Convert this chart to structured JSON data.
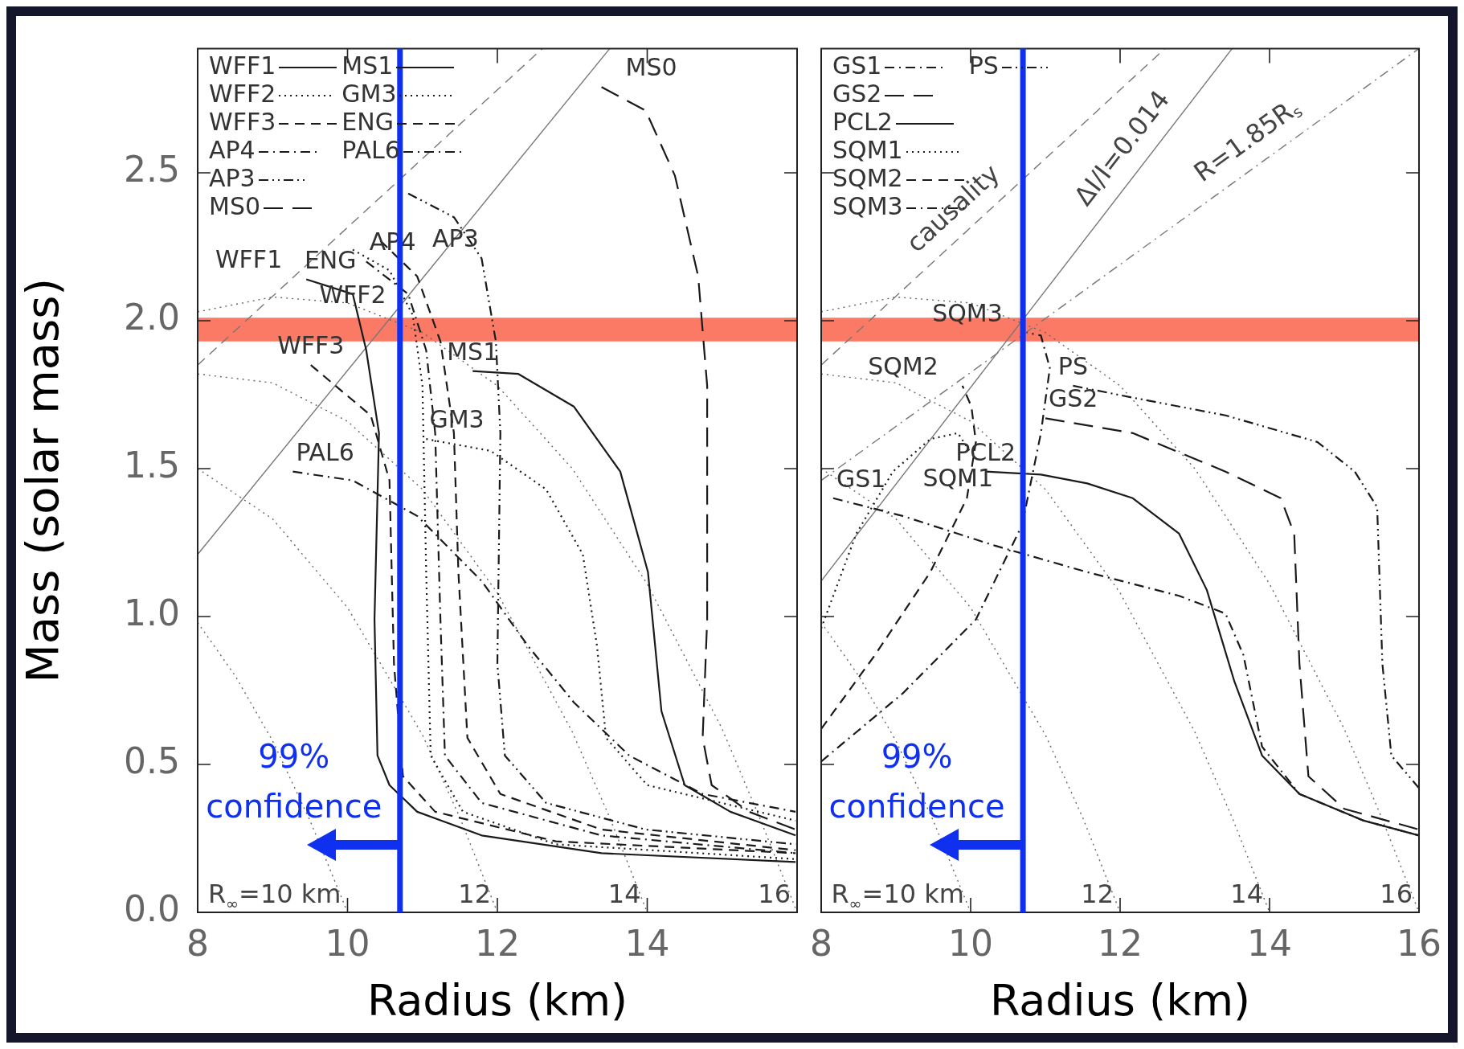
{
  "chart_data": [
    {
      "type": "line",
      "xlabel": "Radius (km)",
      "ylabel": "Mass (solar mass)",
      "xlim": [
        8,
        16
      ],
      "ylim": [
        0,
        2.92
      ],
      "xticks": [
        8,
        10,
        12,
        14,
        {
          "value": 16,
          "label": null
        }
      ],
      "yticks": [
        {
          "value": 0,
          "label": "0.0"
        },
        0.5,
        {
          "value": 1,
          "label": "1.0"
        },
        1.5,
        {
          "value": 2,
          "label": "2.0"
        },
        2.5
      ],
      "legend": "top left",
      "series": [
        {
          "name": "WFF1",
          "color": "#1a1a1a",
          "line_style": "solid",
          "x": [
            9.45,
            10.07,
            10.25,
            10.42,
            10.36,
            10.4,
            10.56,
            10.93,
            11.79,
            13.39,
            15.98
          ],
          "values": [
            2.14,
            2.09,
            1.9,
            1.62,
            0.99,
            0.53,
            0.43,
            0.34,
            0.26,
            0.2,
            0.17
          ]
        },
        {
          "name": "WFF2",
          "color": "#1a1a1a",
          "line_style": "dotted",
          "x": [
            10.07,
            10.56,
            10.87,
            11.0,
            11.05,
            11.11,
            11.54,
            12.78,
            15.98
          ],
          "values": [
            2.24,
            2.17,
            2.02,
            1.78,
            1.15,
            0.53,
            0.34,
            0.23,
            0.18
          ]
        },
        {
          "name": "WFF3",
          "color": "#1a1a1a",
          "line_style": "dashed",
          "x": [
            9.51,
            10.31,
            10.56,
            10.62,
            10.74,
            11.17,
            12.78,
            15.98
          ],
          "values": [
            1.85,
            1.68,
            1.46,
            0.84,
            0.46,
            0.34,
            0.24,
            0.2
          ]
        },
        {
          "name": "AP4",
          "color": "#1a1a1a",
          "line_style": "dashdot",
          "x": [
            10.25,
            10.81,
            11.05,
            11.17,
            11.24,
            11.3,
            11.79,
            13.39,
            15.98
          ],
          "values": [
            2.2,
            2.09,
            1.9,
            1.62,
            0.99,
            0.53,
            0.37,
            0.26,
            0.2
          ]
        },
        {
          "name": "AP3",
          "color": "#1a1a1a",
          "line_style": "dashdotdot",
          "x": [
            10.81,
            11.42,
            11.79,
            11.98,
            12.04,
            12.0,
            12.1,
            12.65,
            13.98,
            15.98
          ],
          "values": [
            2.43,
            2.35,
            2.21,
            1.93,
            1.62,
            0.84,
            0.53,
            0.37,
            0.28,
            0.23
          ]
        },
        {
          "name": "MS0",
          "color": "#1a1a1a",
          "line_style": "longdash",
          "x": [
            13.39,
            13.98,
            14.37,
            14.68,
            14.8,
            14.8,
            14.74,
            14.86,
            15.36,
            15.98
          ],
          "values": [
            2.79,
            2.71,
            2.49,
            2.15,
            1.78,
            0.99,
            0.59,
            0.43,
            0.34,
            0.28
          ]
        },
        {
          "name": "MS1",
          "color": "#1a1a1a",
          "line_style": "solid",
          "x": [
            11.67,
            12.28,
            13.02,
            13.64,
            14.01,
            14.19,
            14.5,
            15.11,
            15.98
          ],
          "values": [
            1.83,
            1.82,
            1.71,
            1.49,
            1.15,
            0.68,
            0.43,
            0.34,
            0.26
          ]
        },
        {
          "name": "GM3",
          "color": "#1a1a1a",
          "line_style": "dotted",
          "x": [
            11.05,
            11.91,
            12.65,
            13.14,
            13.33,
            13.45,
            14.0,
            15.98
          ],
          "values": [
            1.6,
            1.56,
            1.43,
            1.21,
            0.9,
            0.59,
            0.43,
            0.31
          ]
        },
        {
          "name": "ENG",
          "color": "#1a1a1a",
          "line_style": "dashed",
          "x": [
            10.44,
            10.93,
            11.24,
            11.42,
            11.48,
            11.6,
            12.04,
            13.39,
            15.98
          ],
          "values": [
            2.27,
            2.15,
            1.93,
            1.62,
            1.15,
            0.59,
            0.4,
            0.28,
            0.21
          ]
        },
        {
          "name": "PAL6",
          "color": "#1a1a1a",
          "line_style": "dashdot",
          "x": [
            9.27,
            10.07,
            10.93,
            11.79,
            12.41,
            13.02,
            13.76,
            14.74,
            15.98
          ],
          "values": [
            1.49,
            1.46,
            1.34,
            1.12,
            0.9,
            0.71,
            0.53,
            0.4,
            0.34
          ]
        },
        {
          "color": "#666666",
          "line_style": "dotted",
          "x": [
            8,
            8.5,
            9,
            9.5,
            10
          ],
          "values": [
            0.98,
            0.8,
            0.58,
            0.31,
            0
          ]
        },
        {
          "color": "#666666",
          "line_style": "dotted",
          "x": [
            8,
            9,
            10,
            11,
            11.5,
            12
          ],
          "values": [
            1.5,
            1.33,
            1.03,
            0.6,
            0.32,
            0
          ]
        },
        {
          "color": "#666666",
          "line_style": "dotted",
          "x": [
            8,
            9,
            10,
            11,
            12,
            13,
            13.5,
            14
          ],
          "values": [
            1.82,
            1.79,
            1.66,
            1.43,
            1.08,
            0.61,
            0.32,
            0
          ]
        },
        {
          "color": "#666666",
          "line_style": "dotted",
          "x": [
            8,
            9,
            10,
            11,
            12,
            13,
            14,
            15,
            15.5,
            16
          ],
          "values": [
            2.03,
            2.08,
            2.06,
            1.96,
            1.78,
            1.5,
            1.11,
            0.62,
            0.32,
            0
          ]
        },
        {
          "color": "#777777",
          "line_style": "dashed",
          "x": [
            8,
            12.6
          ],
          "values": [
            1.85,
            2.92
          ]
        },
        {
          "color": "#777777",
          "line_style": "solid",
          "x": [
            8,
            13.5
          ],
          "values": [
            1.21,
            2.92
          ]
        }
      ],
      "bands": [
        {
          "axis": "y",
          "from": 1.93,
          "to": 2.01,
          "color": "#fa7a66"
        }
      ],
      "ref_lines": [
        {
          "axis": "x",
          "value": 10.7,
          "label": "99% confidence",
          "color": "#1030f0"
        }
      ],
      "annotations": [
        {
          "text": "R$_{∞}$=10 km",
          "x": 10,
          "y": 0
        },
        {
          "text": "12",
          "x": 12,
          "y": 0
        },
        {
          "text": "14",
          "x": 14,
          "y": 0
        },
        {
          "text": "16",
          "x": 16,
          "y": 0
        }
      ]
    },
    {
      "type": "line",
      "xlabel": "Radius (km)",
      "xlim": [
        8,
        16
      ],
      "ylim": [
        0,
        2.92
      ],
      "xticks": [
        8,
        10,
        12,
        14,
        16
      ],
      "yticks": [
        0,
        0.5,
        1,
        1.5,
        2,
        2.5
      ],
      "tick_labels": "x",
      "legend": "top left",
      "series": [
        {
          "name": "GS1",
          "color": "#1a1a1a",
          "line_style": "dashdot",
          "x": [
            8.16,
            9.09,
            10.32,
            11.56,
            12.79,
            13.41,
            13.65,
            13.9,
            14.4,
            15.26,
            16.0
          ],
          "values": [
            1.4,
            1.34,
            1.24,
            1.15,
            1.07,
            1.01,
            0.87,
            0.56,
            0.4,
            0.31,
            0.26
          ]
        },
        {
          "name": "GS2",
          "color": "#1a1a1a",
          "line_style": "longdash",
          "x": [
            11.0,
            12.17,
            13.41,
            14.15,
            14.33,
            14.4,
            14.52,
            15.0,
            16.0
          ],
          "values": [
            1.67,
            1.62,
            1.49,
            1.4,
            1.28,
            0.84,
            0.46,
            0.35,
            0.28
          ]
        },
        {
          "name": "PCL2",
          "color": "#1a1a1a",
          "line_style": "solid",
          "x": [
            10.2,
            10.94,
            11.56,
            12.17,
            12.79,
            13.16,
            13.53,
            13.9,
            14.4,
            15.26,
            16.0
          ],
          "values": [
            1.49,
            1.48,
            1.45,
            1.4,
            1.28,
            1.09,
            0.78,
            0.53,
            0.4,
            0.31,
            0.26
          ]
        },
        {
          "name": "SQM1",
          "color": "#1a1a1a",
          "line_style": "dotted",
          "x": [
            8.0,
            8.47,
            8.96,
            9.46,
            9.83,
            10.01
          ],
          "values": [
            0.96,
            1.28,
            1.49,
            1.6,
            1.62,
            1.55
          ]
        },
        {
          "name": "SQM2",
          "color": "#1a1a1a",
          "line_style": "dashed",
          "x": [
            8.0,
            8.72,
            9.46,
            9.95,
            10.07,
            10.01,
            9.89
          ],
          "values": [
            0.62,
            0.87,
            1.15,
            1.4,
            1.59,
            1.71,
            1.78
          ]
        },
        {
          "name": "SQM3",
          "color": "#1a1a1a",
          "line_style": "dashdot",
          "x": [
            8.0,
            9.09,
            10.07,
            10.69,
            10.94,
            11.06,
            10.94,
            10.75
          ],
          "values": [
            0.51,
            0.74,
            0.99,
            1.31,
            1.62,
            1.84,
            1.95,
            1.96
          ]
        },
        {
          "name": "PS",
          "color": "#1a1a1a",
          "line_style": "dashdotdot",
          "x": [
            11.37,
            12.17,
            13.41,
            14.64,
            15.14,
            15.44,
            15.51,
            15.63,
            16.0
          ],
          "values": [
            1.78,
            1.74,
            1.68,
            1.59,
            1.49,
            1.37,
            0.84,
            0.53,
            0.42
          ]
        },
        {
          "color": "#666666",
          "line_style": "dotted",
          "x": [
            8,
            8.5,
            9,
            9.5,
            10
          ],
          "values": [
            0.98,
            0.8,
            0.58,
            0.31,
            0
          ]
        },
        {
          "color": "#666666",
          "line_style": "dotted",
          "x": [
            8,
            9,
            10,
            11,
            11.5,
            12
          ],
          "values": [
            1.5,
            1.33,
            1.03,
            0.6,
            0.32,
            0
          ]
        },
        {
          "color": "#666666",
          "line_style": "dotted",
          "x": [
            8,
            9,
            10,
            11,
            12,
            13,
            13.5,
            14
          ],
          "values": [
            1.82,
            1.79,
            1.66,
            1.43,
            1.08,
            0.61,
            0.32,
            0
          ]
        },
        {
          "color": "#666666",
          "line_style": "dotted",
          "x": [
            8,
            9,
            10,
            11,
            12,
            13,
            14,
            15,
            15.5,
            16
          ],
          "values": [
            2.03,
            2.08,
            2.06,
            1.96,
            1.78,
            1.5,
            1.11,
            0.62,
            0.32,
            0
          ]
        },
        {
          "color": "#777777",
          "line_style": "dashed",
          "x": [
            8,
            12.6
          ],
          "values": [
            1.85,
            2.92
          ]
        },
        {
          "color": "#777777",
          "line_style": "solid",
          "x": [
            8,
            13.5
          ],
          "values": [
            1.12,
            2.92
          ]
        },
        {
          "color": "#777777",
          "line_style": "dashdot",
          "x": [
            8,
            16
          ],
          "values": [
            1.46,
            2.92
          ]
        }
      ],
      "bands": [
        {
          "axis": "y",
          "from": 1.93,
          "to": 2.01,
          "color": "#fa7a66"
        }
      ],
      "ref_lines": [
        {
          "axis": "x",
          "value": 10.7,
          "label": "99% confidence",
          "color": "#1030f0"
        }
      ],
      "annotations": [
        {
          "text": "causality",
          "x": 10.0,
          "y": 2.315
        },
        {
          "text": "ΔI/I=0.014",
          "x": 12.3,
          "y": 2.53
        },
        {
          "text": "R=1.85R$_{s}$",
          "x": 13.9,
          "y": 2.54
        },
        {
          "text": "R$_{∞}$=10 km",
          "x": 10,
          "y": 0
        },
        {
          "text": "12",
          "x": 12,
          "y": 0
        },
        {
          "text": "14",
          "x": 14,
          "y": 0
        },
        {
          "text": "16",
          "x": 16,
          "y": 0
        }
      ]
    }
  ]
}
